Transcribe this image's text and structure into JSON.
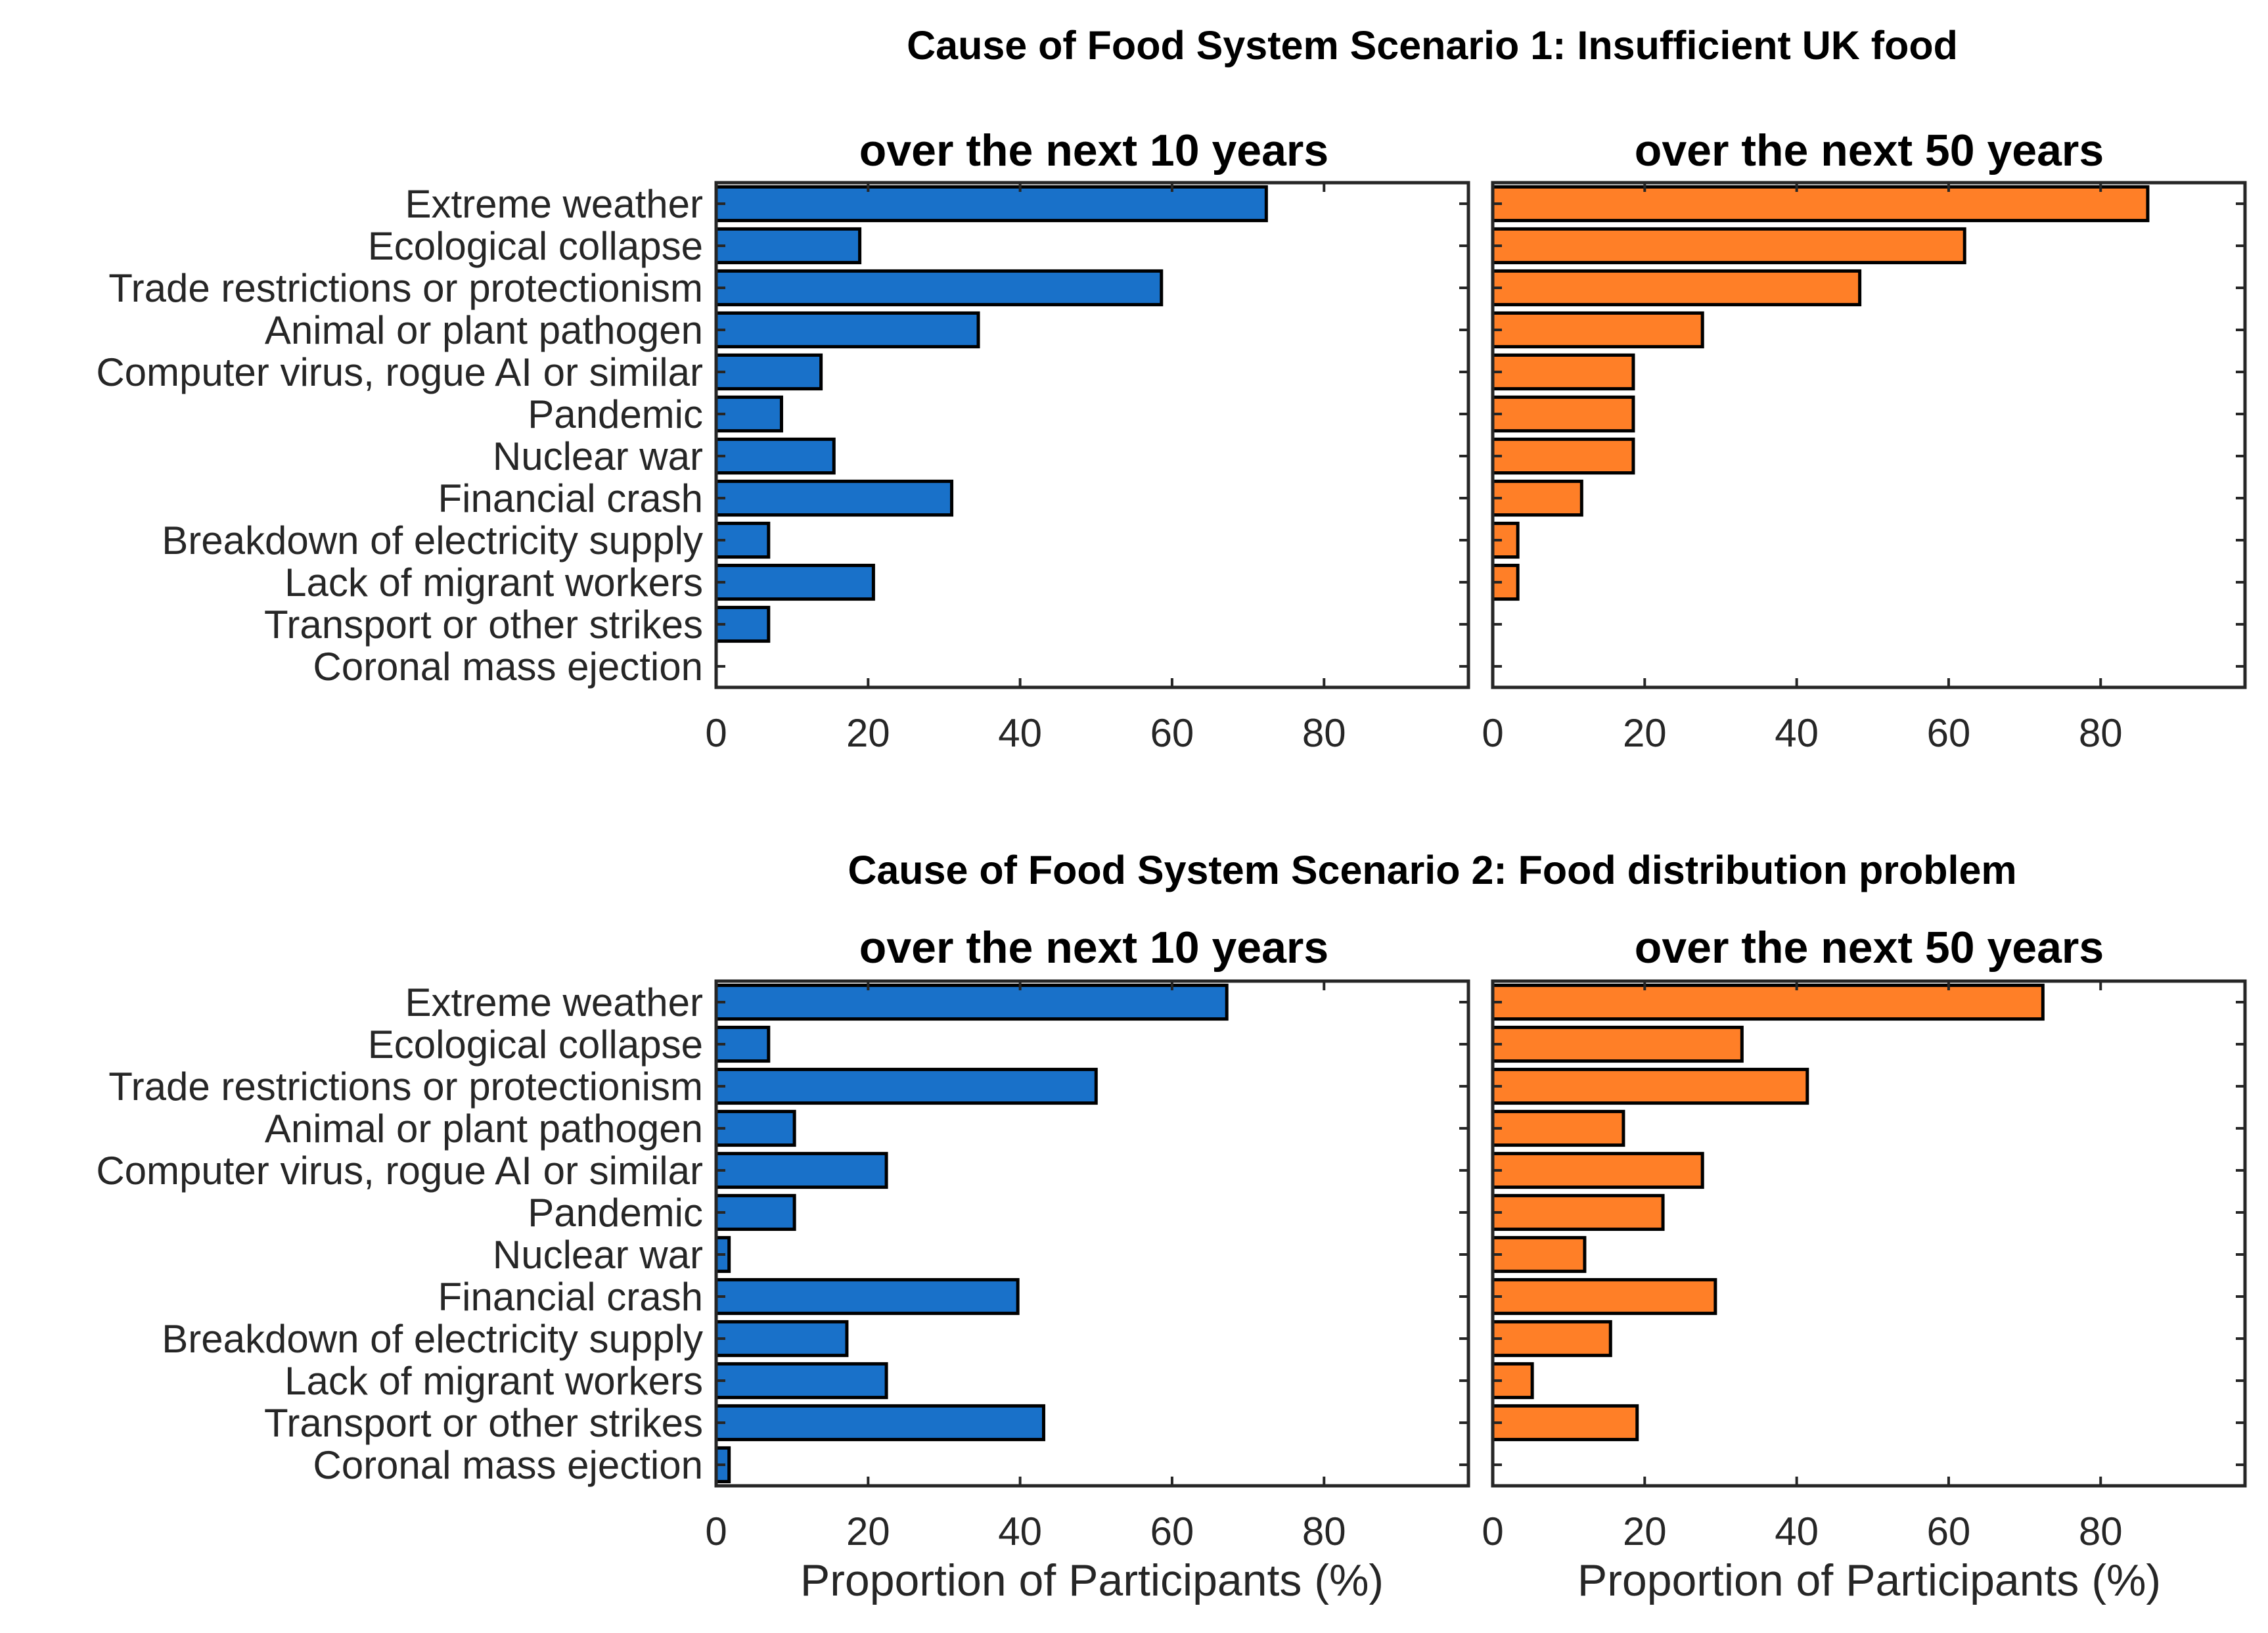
{
  "chart_data": [
    {
      "type": "bar",
      "orientation": "horizontal",
      "group_title": "Cause of Food System Scenario 1: Insufficient UK food",
      "title": "over the next 10 years",
      "color": "#1971c9",
      "categories": [
        "Extreme weather",
        "Ecological collapse",
        "Trade restrictions or protectionism",
        "Animal or plant pathogen",
        "Computer virus, rogue AI or similar",
        "Pandemic",
        "Nuclear war",
        "Financial crash",
        "Breakdown of electricity supply",
        "Lack of migrant workers",
        "Transport or other strikes",
        "Coronal mass ejection"
      ],
      "values": [
        72.4,
        18.9,
        58.6,
        34.5,
        13.8,
        8.6,
        15.5,
        31.0,
        6.9,
        20.7,
        6.9,
        0
      ],
      "xlabel": "",
      "xlim": [
        0,
        99
      ],
      "xticks": [
        0,
        20,
        40,
        60,
        80
      ]
    },
    {
      "type": "bar",
      "orientation": "horizontal",
      "title": "over the next 50 years",
      "color": "#ff7f27",
      "categories": [
        "Extreme weather",
        "Ecological collapse",
        "Trade restrictions or protectionism",
        "Animal or plant pathogen",
        "Computer virus, rogue AI or similar",
        "Pandemic",
        "Nuclear war",
        "Financial crash",
        "Breakdown of electricity supply",
        "Lack of migrant workers",
        "Transport or other strikes",
        "Coronal mass ejection"
      ],
      "values": [
        86.2,
        62.1,
        48.3,
        27.6,
        18.5,
        18.5,
        18.5,
        11.7,
        3.3,
        3.3,
        0,
        0
      ],
      "xlabel": "",
      "xlim": [
        0,
        99
      ],
      "xticks": [
        0,
        20,
        40,
        60,
        80
      ]
    },
    {
      "type": "bar",
      "orientation": "horizontal",
      "group_title": "Cause of Food System Scenario 2: Food distribution problem",
      "title": "over the next 10 years",
      "color": "#1971c9",
      "categories": [
        "Extreme weather",
        "Ecological collapse",
        "Trade restrictions or protectionism",
        "Animal or plant pathogen",
        "Computer virus, rogue AI or similar",
        "Pandemic",
        "Nuclear war",
        "Financial crash",
        "Breakdown of electricity supply",
        "Lack of migrant workers",
        "Transport or other strikes",
        "Coronal mass ejection"
      ],
      "values": [
        67.2,
        6.9,
        50.0,
        10.3,
        22.4,
        10.3,
        1.7,
        39.7,
        17.2,
        22.4,
        43.1,
        1.7
      ],
      "xlabel": "Proportion of Participants (%)",
      "xlim": [
        0,
        99
      ],
      "xticks": [
        0,
        20,
        40,
        60,
        80
      ]
    },
    {
      "type": "bar",
      "orientation": "horizontal",
      "title": "over the next 50 years",
      "color": "#ff7f27",
      "categories": [
        "Extreme weather",
        "Ecological collapse",
        "Trade restrictions or protectionism",
        "Animal or plant pathogen",
        "Computer virus, rogue AI or similar",
        "Pandemic",
        "Nuclear war",
        "Financial crash",
        "Breakdown of electricity supply",
        "Lack of migrant workers",
        "Transport or other strikes",
        "Coronal mass ejection"
      ],
      "values": [
        72.4,
        32.8,
        41.4,
        17.2,
        27.6,
        22.4,
        12.1,
        29.3,
        15.5,
        5.2,
        19.0,
        0
      ],
      "xlabel": "Proportion of Participants (%)",
      "xlim": [
        0,
        99
      ],
      "xticks": [
        0,
        20,
        40,
        60,
        80
      ]
    }
  ]
}
